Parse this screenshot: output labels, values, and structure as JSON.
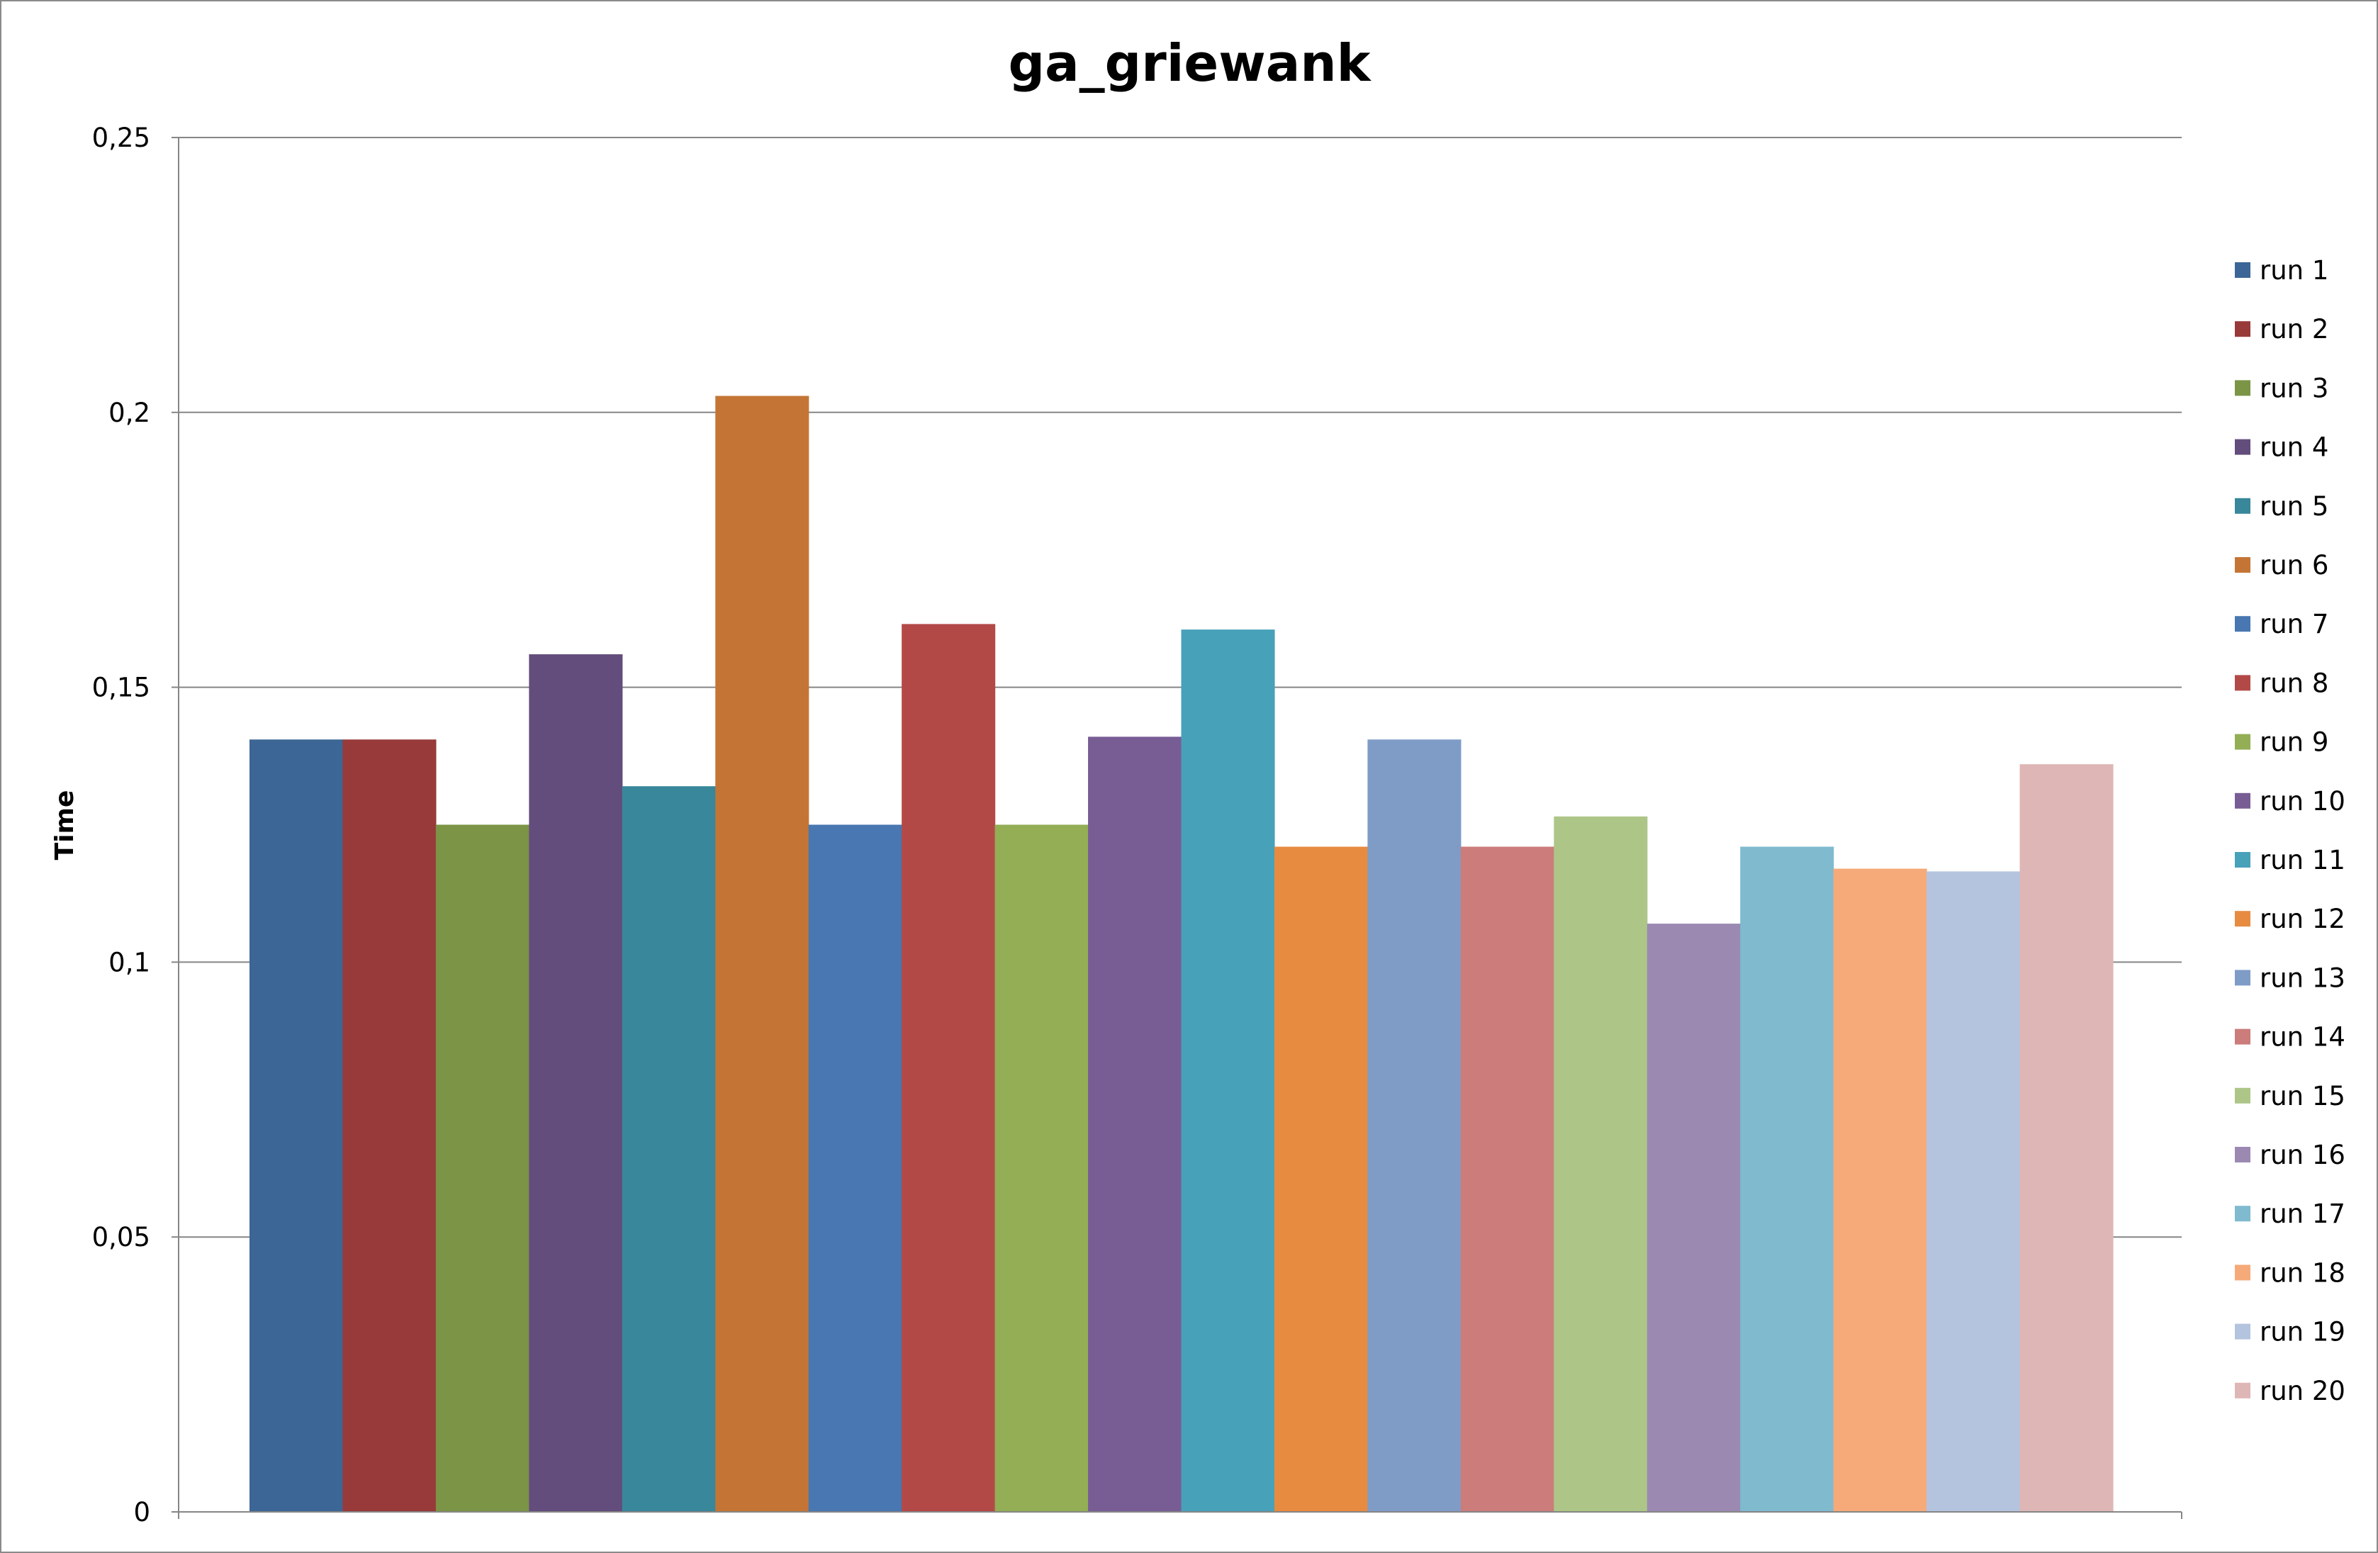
{
  "chart_data": {
    "type": "bar",
    "title": "ga_griewank",
    "xlabel": "",
    "ylabel": "Time",
    "ylim": [
      0,
      0.25
    ],
    "yticks": [
      0,
      0.05,
      0.1,
      0.15,
      0.2,
      0.25
    ],
    "ytick_labels": [
      "0",
      "0,05",
      "0,1",
      "0,15",
      "0,2",
      "0,25"
    ],
    "grid": true,
    "legend_position": "right",
    "series": [
      {
        "name": "run 1",
        "values": [
          0.1405
        ],
        "color": "#3C6695"
      },
      {
        "name": "run 2",
        "values": [
          0.1405
        ],
        "color": "#973A39"
      },
      {
        "name": "run 3",
        "values": [
          0.125
        ],
        "color": "#7B9445"
      },
      {
        "name": "run 4",
        "values": [
          0.156
        ],
        "color": "#634D7C"
      },
      {
        "name": "run 5",
        "values": [
          0.132
        ],
        "color": "#38879A"
      },
      {
        "name": "run 6",
        "values": [
          0.203
        ],
        "color": "#C47535"
      },
      {
        "name": "run 7",
        "values": [
          0.125
        ],
        "color": "#4877B1"
      },
      {
        "name": "run 8",
        "values": [
          0.1615
        ],
        "color": "#B34947"
      },
      {
        "name": "run 9",
        "values": [
          0.125
        ],
        "color": "#93AE55"
      },
      {
        "name": "run 10",
        "values": [
          0.141
        ],
        "color": "#785D95"
      },
      {
        "name": "run 11",
        "values": [
          0.1605
        ],
        "color": "#47A1B9"
      },
      {
        "name": "run 12",
        "values": [
          0.121
        ],
        "color": "#E78B41"
      },
      {
        "name": "run 13",
        "values": [
          0.1405
        ],
        "color": "#7F9CC6"
      },
      {
        "name": "run 14",
        "values": [
          0.121
        ],
        "color": "#CB7C7B"
      },
      {
        "name": "run 15",
        "values": [
          0.1265
        ],
        "color": "#ADC688"
      },
      {
        "name": "run 16",
        "values": [
          0.107
        ],
        "color": "#9B89B2"
      },
      {
        "name": "run 17",
        "values": [
          0.121
        ],
        "color": "#7FBACF"
      },
      {
        "name": "run 18",
        "values": [
          0.117
        ],
        "color": "#F6AA79"
      },
      {
        "name": "run 19",
        "values": [
          0.1165
        ],
        "color": "#B4C4DF"
      },
      {
        "name": "run 20",
        "values": [
          0.136
        ],
        "color": "#DFB6B6"
      }
    ]
  }
}
